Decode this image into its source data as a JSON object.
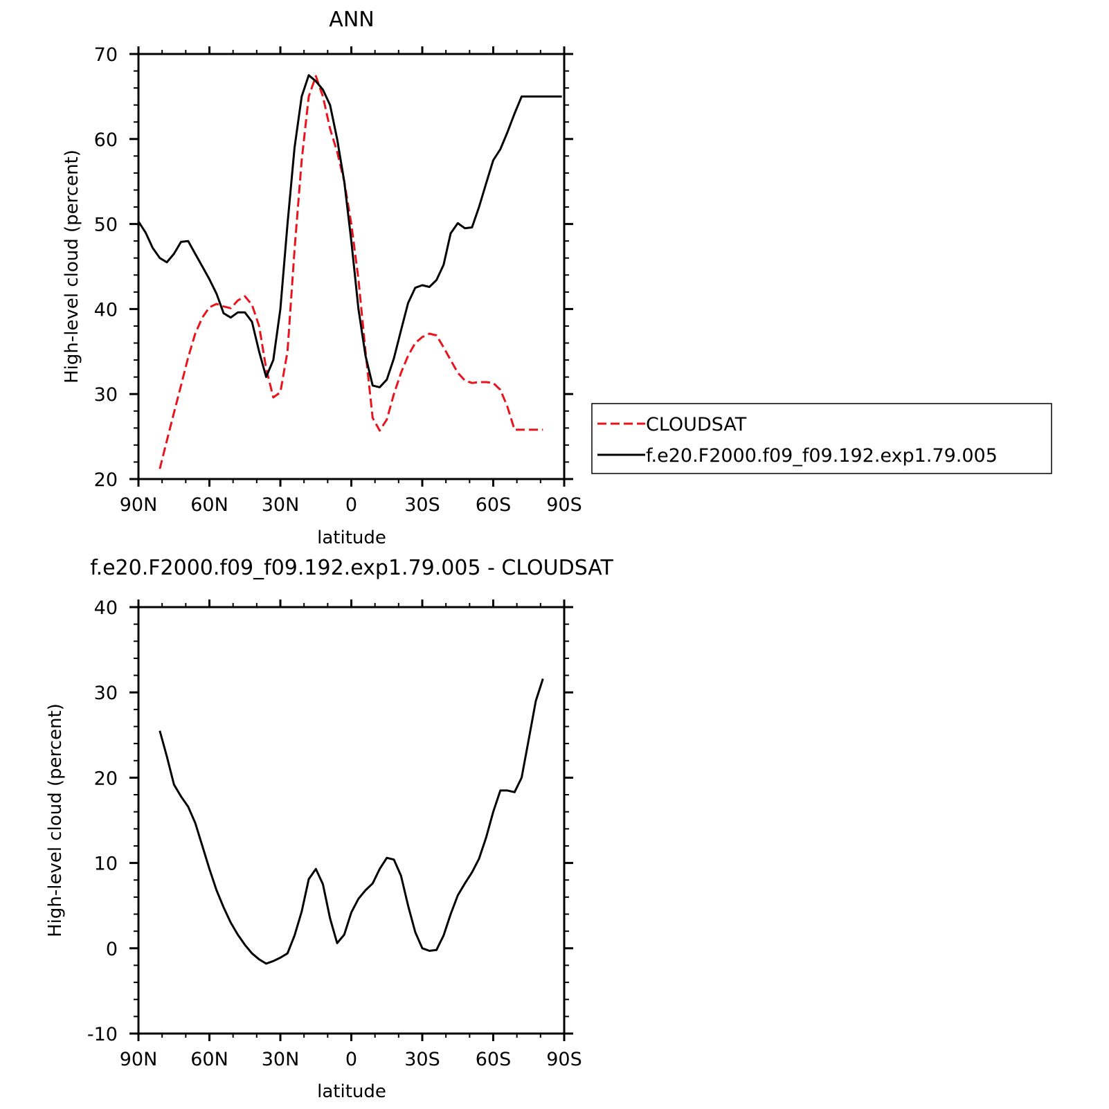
{
  "chart_data": [
    {
      "type": "line",
      "title": "ANN",
      "xlabel": "latitude",
      "ylabel": "High-level cloud (percent)",
      "xlim": [
        90,
        -90
      ],
      "ylim": [
        20,
        70
      ],
      "xticks": [
        90,
        60,
        30,
        0,
        -30,
        -60,
        -90
      ],
      "xtick_labels": [
        "90N",
        "60N",
        "30N",
        "0",
        "30S",
        "60S",
        "90S"
      ],
      "yticks": [
        20,
        30,
        40,
        50,
        60,
        70
      ],
      "ytick_labels": [
        "20",
        "30",
        "40",
        "50",
        "60",
        "70"
      ],
      "grid": false,
      "legend": {
        "placement": "right"
      },
      "series": [
        {
          "name": "CLOUDSAT",
          "color": "#e8141c",
          "style": "dashed",
          "x": [
            81,
            78,
            75,
            72,
            69,
            66,
            63,
            60,
            57,
            54,
            51,
            48,
            45,
            42,
            39,
            36,
            33,
            30,
            27,
            24,
            21,
            18,
            15,
            12,
            9,
            6,
            3,
            0,
            -3,
            -6,
            -9,
            -12,
            -15,
            -18,
            -21,
            -24,
            -27,
            -30,
            -33,
            -36,
            -39,
            -42,
            -45,
            -48,
            -51,
            -54,
            -57,
            -60,
            -63,
            -66,
            -69,
            -72,
            -75,
            -78,
            -81
          ],
          "y": [
            21.2,
            24.5,
            27.8,
            31.0,
            34.3,
            37.1,
            39.0,
            40.2,
            40.6,
            40.3,
            40.1,
            41.0,
            41.5,
            40.5,
            38.0,
            33.0,
            29.6,
            30.2,
            35.0,
            47.0,
            57.5,
            65.0,
            67.4,
            65.0,
            61.2,
            58.5,
            55.0,
            50.0,
            43.5,
            35.0,
            27.2,
            25.7,
            27.0,
            30.0,
            32.5,
            34.5,
            36.0,
            36.7,
            37.1,
            36.9,
            35.5,
            34.0,
            32.5,
            31.6,
            31.3,
            31.4,
            31.4,
            31.3,
            30.5,
            28.5,
            25.8,
            25.8,
            25.8,
            25.8,
            25.8
          ],
          "x_range": [
            81,
            -81
          ]
        },
        {
          "name": "f.e20.F2000.f09_f09.192.exp1.79.005",
          "color": "#000000",
          "style": "solid",
          "x": [
            90,
            87,
            84,
            81,
            78,
            75,
            72,
            69,
            66,
            63,
            60,
            57,
            54,
            51,
            48,
            45,
            42,
            39,
            36,
            33,
            30,
            27,
            24,
            21,
            18,
            15,
            12,
            9,
            6,
            3,
            0,
            -3,
            -6,
            -9,
            -12,
            -15,
            -18,
            -21,
            -24,
            -27,
            -30,
            -33,
            -36,
            -39,
            -42,
            -45,
            -48,
            -51,
            -54,
            -57,
            -60,
            -63,
            -66,
            -69,
            -72,
            -75,
            -78,
            -81,
            -84,
            -87,
            -89
          ],
          "y": [
            50.3,
            49.0,
            47.2,
            46.0,
            45.5,
            46.5,
            47.9,
            48.0,
            46.5,
            45.0,
            43.5,
            41.8,
            39.5,
            39.0,
            39.6,
            39.6,
            38.5,
            35.0,
            32.0,
            34.0,
            40.0,
            50.0,
            59.0,
            65.0,
            67.5,
            66.8,
            65.8,
            64.0,
            60.0,
            55.0,
            48.0,
            40.0,
            34.5,
            31.0,
            30.8,
            31.7,
            34.2,
            37.5,
            40.7,
            42.5,
            42.8,
            42.6,
            43.4,
            45.2,
            48.9,
            50.1,
            49.5,
            49.6,
            52.0,
            54.8,
            57.5,
            58.8,
            60.8,
            63.0,
            65.0,
            65.0,
            65.0,
            65.0,
            65.0,
            65.0,
            65.0
          ]
        }
      ]
    },
    {
      "type": "line",
      "title": "f.e20.F2000.f09_f09.192.exp1.79.005 - CLOUDSAT",
      "xlabel": "latitude",
      "ylabel": "High-level cloud (percent)",
      "xlim": [
        90,
        -90
      ],
      "ylim": [
        -10,
        40
      ],
      "xticks": [
        90,
        60,
        30,
        0,
        -30,
        -60,
        -90
      ],
      "xtick_labels": [
        "90N",
        "60N",
        "30N",
        "0",
        "30S",
        "60S",
        "90S"
      ],
      "yticks": [
        -10,
        0,
        10,
        20,
        30,
        40
      ],
      "ytick_labels": [
        "-10",
        "0",
        "10",
        "20",
        "30",
        "40"
      ],
      "grid": false,
      "series": [
        {
          "color": "#000000",
          "style": "solid",
          "x": [
            81,
            78,
            75,
            72,
            69,
            66,
            63,
            60,
            57,
            54,
            51,
            48,
            45,
            42,
            39,
            36,
            33,
            30,
            27,
            24,
            21,
            18,
            15,
            12,
            9,
            6,
            3,
            0,
            -3,
            -6,
            -9,
            -12,
            -15,
            -18,
            -21,
            -24,
            -27,
            -30,
            -33,
            -36,
            -39,
            -42,
            -45,
            -48,
            -51,
            -54,
            -57,
            -60,
            -63,
            -66,
            -69,
            -72,
            -75,
            -78,
            -81
          ],
          "y": [
            25.5,
            22.5,
            19.2,
            17.8,
            16.6,
            14.7,
            12.0,
            9.3,
            6.8,
            4.8,
            3.0,
            1.6,
            0.4,
            -0.6,
            -1.3,
            -1.8,
            -1.5,
            -1.1,
            -0.6,
            1.5,
            4.3,
            8.1,
            9.3,
            7.5,
            3.5,
            0.6,
            1.6,
            4.2,
            5.8,
            6.8,
            7.6,
            9.3,
            10.6,
            10.4,
            8.5,
            5.0,
            1.9,
            0.0,
            -0.3,
            -0.2,
            1.5,
            4.0,
            6.2,
            7.6,
            8.9,
            10.5,
            13.0,
            16.0,
            18.5,
            18.5,
            18.3,
            20.0,
            24.5,
            29.0,
            31.6
          ]
        }
      ]
    }
  ]
}
